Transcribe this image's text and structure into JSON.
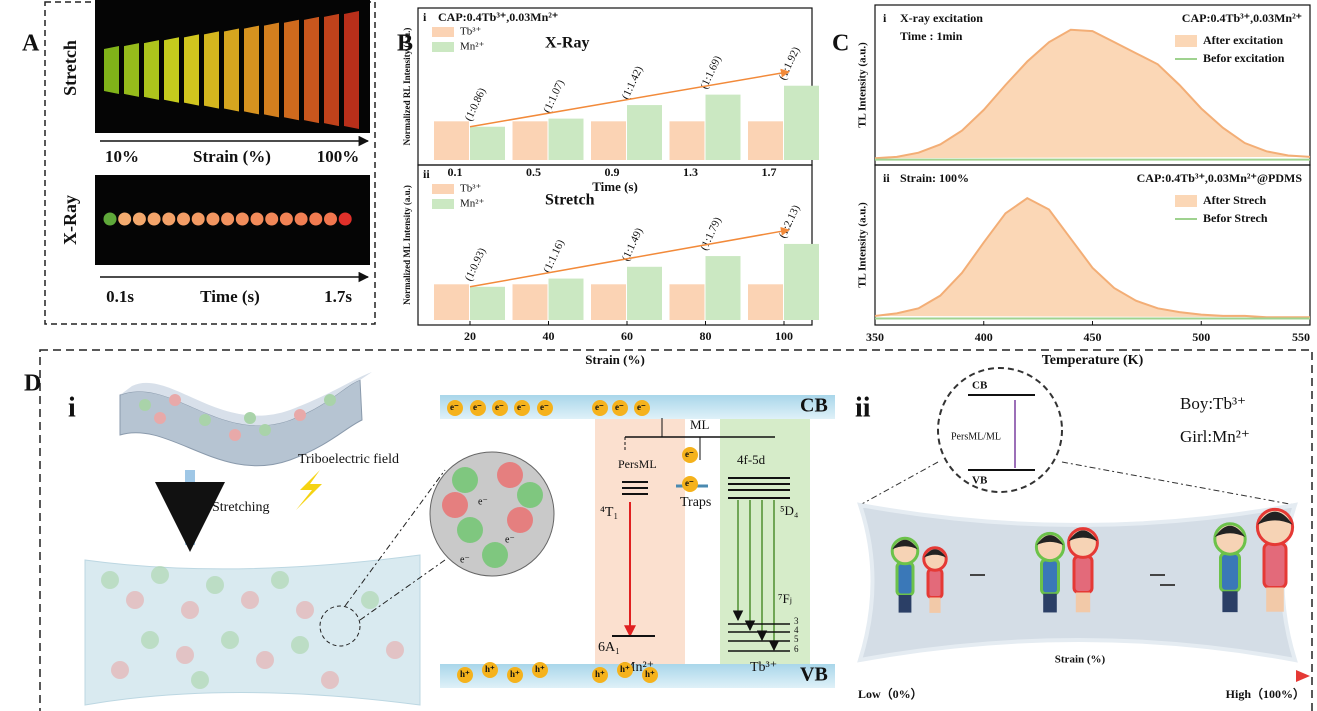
{
  "panel_labels": {
    "a": "A",
    "b": "B",
    "c": "C",
    "d": "D"
  },
  "panel_a": {
    "stretch_label": "Stretch",
    "xray_label": "X-Ray",
    "strain_start": "10%",
    "strain_axis": "Strain (%)",
    "strain_end": "100%",
    "time_start": "0.1s",
    "time_axis": "Time (s)",
    "time_end": "1.7s"
  },
  "chart_data": [
    {
      "type": "bar",
      "subpanel": "i",
      "title": "CAP:0.4Tb³⁺,0.03Mn²⁺",
      "annotation": "X-Ray",
      "ylabel": "Normalized RL Intensity (a.u.)",
      "xlabel": "Time (s)",
      "categories": [
        "0.1",
        "0.5",
        "0.9",
        "1.3",
        "1.7"
      ],
      "series": [
        {
          "name": "Tb³⁺",
          "color": "#fbd3b4",
          "values": [
            1,
            1,
            1,
            1,
            1
          ]
        },
        {
          "name": "Mn²⁺",
          "color": "#cbe8c2",
          "values": [
            0.86,
            1.07,
            1.42,
            1.69,
            1.92
          ],
          "value_labels": [
            "(1:0.86)",
            "(1:1.07)",
            "(1:1.42)",
            "(1:1.69)",
            "(1:1.92)"
          ]
        }
      ],
      "ylim": [
        0,
        3.8
      ],
      "trend_color": "#f28a3a"
    },
    {
      "type": "bar",
      "subpanel": "ii",
      "annotation": "Stretch",
      "ylabel": "Normalized ML Intensity (a.u.)",
      "xlabel": "Strain (%)",
      "categories": [
        "20",
        "40",
        "60",
        "80",
        "100"
      ],
      "series": [
        {
          "name": "Tb³⁺",
          "color": "#fbd3b4",
          "values": [
            1,
            1,
            1,
            1,
            1
          ]
        },
        {
          "name": "Mn²⁺",
          "color": "#cbe8c2",
          "values": [
            0.93,
            1.16,
            1.49,
            1.79,
            2.13
          ],
          "value_labels": [
            "(1:0.93)",
            "(1:1.16)",
            "(1:1.49)",
            "(1:1.79)",
            "(1:2.13)"
          ]
        }
      ],
      "ylim": [
        0,
        4.2
      ],
      "trend_color": "#f28a3a"
    },
    {
      "type": "line",
      "subpanel": "i",
      "annotations": [
        "X-ray excitation",
        "Time : 1min"
      ],
      "legend_title": "CAP:0.4Tb³⁺,0.03Mn²⁺",
      "ylabel": "TL Intensity (a.u.)",
      "x": [
        350,
        360,
        370,
        380,
        390,
        400,
        410,
        420,
        430,
        440,
        450,
        460,
        470,
        480,
        490,
        500,
        510,
        520,
        530,
        540,
        550
      ],
      "xlim": [
        350,
        550
      ],
      "ylim": [
        0,
        1.1
      ],
      "series": [
        {
          "name": "After excitation",
          "color": "#f3ae76",
          "fill": "#fbd7b6",
          "values": [
            0.02,
            0.03,
            0.06,
            0.12,
            0.22,
            0.37,
            0.55,
            0.72,
            0.86,
            0.95,
            0.94,
            0.86,
            0.78,
            0.7,
            0.55,
            0.38,
            0.24,
            0.13,
            0.07,
            0.04,
            0.03
          ]
        },
        {
          "name": "Befor excitation",
          "color": "#9fd28f",
          "values": [
            0.01,
            0.01,
            0.01,
            0.01,
            0.01,
            0.01,
            0.01,
            0.01,
            0.01,
            0.01,
            0.01,
            0.01,
            0.01,
            0.01,
            0.01,
            0.01,
            0.01,
            0.01,
            0.01,
            0.01,
            0.01
          ]
        }
      ]
    },
    {
      "type": "line",
      "subpanel": "ii",
      "annotations": [
        "Strain: 100%"
      ],
      "legend_title": "CAP:0.4Tb³⁺,0.03Mn²⁺@PDMS",
      "ylabel": "TL Intensity (a.u.)",
      "xlabel": "Temperature (K)",
      "x": [
        350,
        360,
        370,
        380,
        390,
        400,
        410,
        420,
        430,
        440,
        450,
        460,
        470,
        480,
        490,
        500,
        510,
        520,
        530,
        540,
        550
      ],
      "xlim": [
        350,
        550
      ],
      "xticks": [
        350,
        400,
        450,
        500,
        550
      ],
      "ylim": [
        0,
        1.2
      ],
      "series": [
        {
          "name": "After Strech",
          "color": "#f3ae76",
          "fill": "#fbd7b6",
          "values": [
            0.04,
            0.06,
            0.1,
            0.2,
            0.38,
            0.62,
            0.85,
            0.97,
            0.88,
            0.65,
            0.42,
            0.26,
            0.16,
            0.1,
            0.07,
            0.05,
            0.04,
            0.04,
            0.03,
            0.03,
            0.03
          ]
        },
        {
          "name": "Befor Strech",
          "color": "#9fd28f",
          "values": [
            0.02,
            0.02,
            0.02,
            0.02,
            0.02,
            0.02,
            0.02,
            0.02,
            0.02,
            0.02,
            0.02,
            0.02,
            0.02,
            0.02,
            0.02,
            0.02,
            0.02,
            0.02,
            0.02,
            0.02,
            0.02
          ]
        }
      ]
    }
  ],
  "diagram": {
    "part_i": "i",
    "stretching": "Stretching",
    "triboelectric": "Triboelectric field",
    "cb": "CB",
    "vb": "VB",
    "ml": "ML",
    "persml": "PersML",
    "traps": "Traps",
    "level_4f5d": "4f-5d",
    "level_5d4": "⁵D₄",
    "level_4t1": "⁴T₁",
    "level_6a1": "6A₁",
    "mn": "Mn²⁺",
    "tb": "Tb³⁺",
    "level_7fj": "⁷Fⱼ",
    "fj_levels": [
      "3",
      "4",
      "5",
      "6"
    ],
    "electron": "e⁻",
    "hole": "h⁺",
    "part_ii": "ii",
    "boy": "Boy:Tb³⁺",
    "girl": "Girl:Mn²⁺",
    "inset_cb": "CB",
    "inset_vb": "VB",
    "inset_persml": "PersML/ML",
    "strain": "Strain (%)",
    "low": "Low（0%）",
    "high": "High（100%）"
  }
}
